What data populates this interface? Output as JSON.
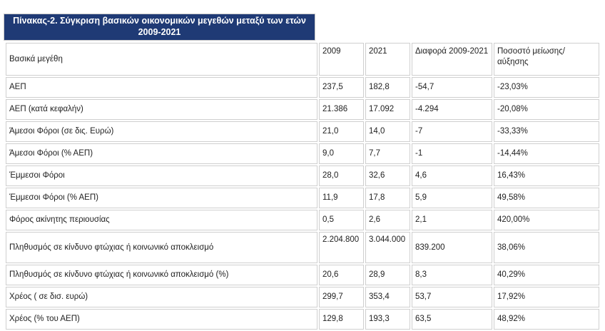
{
  "table": {
    "title": "Πίνακας-2. Σύγκριση βασικών οικονομικών μεγεθών μεταξύ των ετών 2009-2021",
    "headers": [
      "Βασικά μεγέθη",
      "2009",
      "2021",
      "Διαφορά 2009-2021",
      "Ποσοστό μείωσης/ αύξησης"
    ],
    "rows": [
      [
        "ΑΕΠ",
        "237,5",
        "182,8",
        "-54,7",
        "-23,03%"
      ],
      [
        "ΑΕΠ (κατά κεφαλήν)",
        "21.386",
        "17.092",
        "-4.294",
        "-20,08%"
      ],
      [
        "Άμεσοι Φόροι (σε δις. Ευρώ)",
        "21,0",
        "14,0",
        "-7",
        "-33,33%"
      ],
      [
        "Άμεσοι Φόροι (% ΑΕΠ)",
        "9,0",
        "7,7",
        "-1",
        "-14,44%"
      ],
      [
        "Έμμεσοι Φόροι",
        "28,0",
        "32,6",
        "4,6",
        "16,43%"
      ],
      [
        "Έμμεσοι Φόροι (% ΑΕΠ)",
        "11,9",
        "17,8",
        "5,9",
        "49,58%"
      ],
      [
        "Φόρος ακίνητης περιουσίας",
        "0,5",
        "2,6",
        "2,1",
        "420,00%"
      ],
      [
        "Πληθυσμός σε κίνδυνο φτώχιας ή κοινωνικό αποκλεισμό",
        "2.204.800",
        "3.044.000",
        "839.200",
        "38,06%"
      ],
      [
        "Πληθυσμός σε κίνδυνο φτώχιας ή κοινωνικό αποκλεισμό (%)",
        "20,6",
        "28,9",
        "8,3",
        "40,29%"
      ],
      [
        "Χρέος ( σε δισ. ευρώ)",
        "299,7",
        "353,4",
        "53,7",
        "17,92%"
      ],
      [
        "Χρέος (% του ΑΕΠ)",
        "129,8",
        "193,3",
        "63,5",
        "48,92%"
      ]
    ]
  }
}
